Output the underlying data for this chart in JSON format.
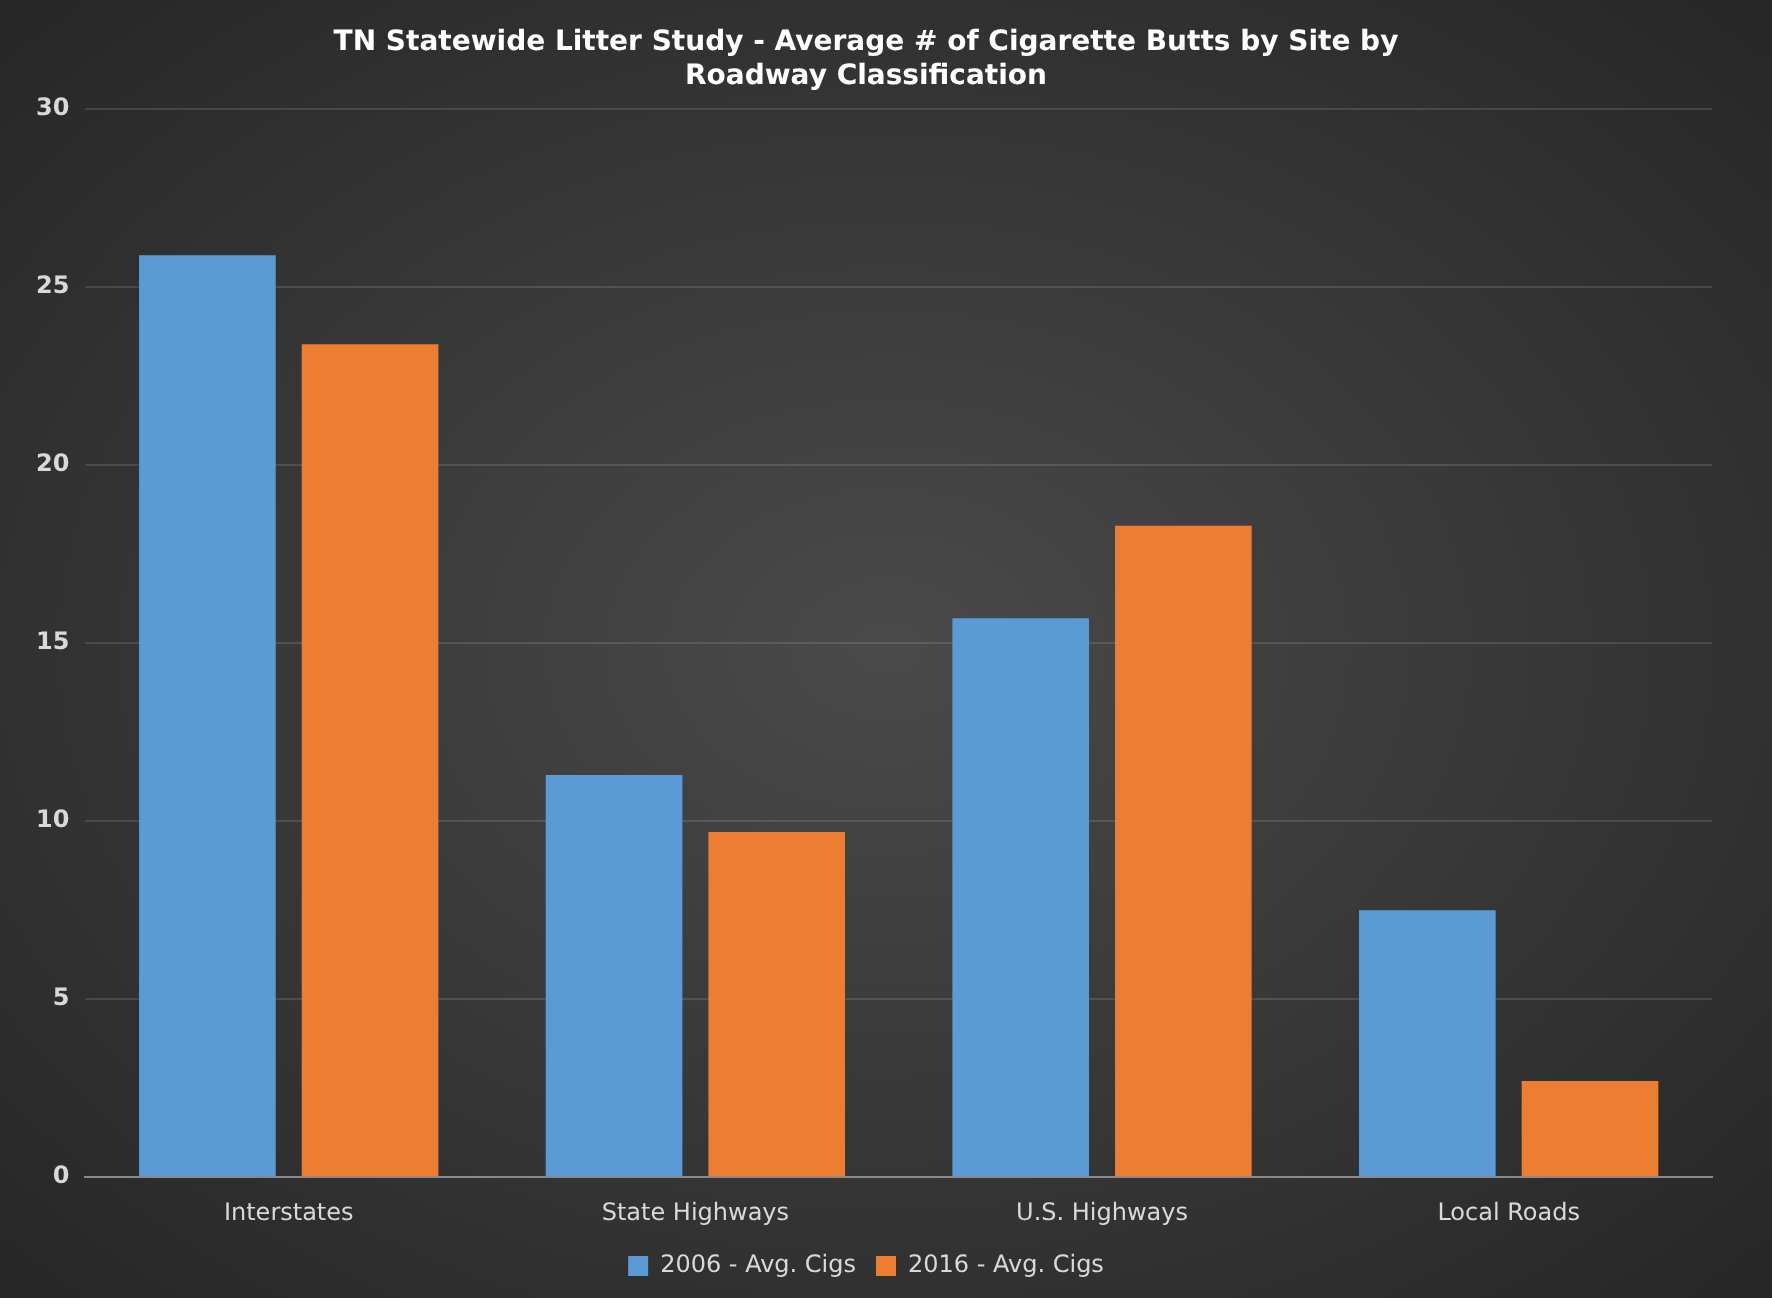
{
  "chart_data": {
    "type": "bar",
    "title": "TN Statewide Litter Study - Average # of Cigarette Butts by Site by Roadway Classification",
    "categories": [
      "Interstates",
      "State Highways",
      "U.S. Highways",
      "Local Roads"
    ],
    "series": [
      {
        "name": "2006 - Avg. Cigs",
        "color": "#5b9bd5",
        "values": [
          25.9,
          11.3,
          15.7,
          7.5
        ]
      },
      {
        "name": "2016 - Avg. Cigs",
        "color": "#ed7d31",
        "values": [
          23.4,
          9.7,
          18.3,
          2.7
        ]
      }
    ],
    "ylim": [
      0,
      30
    ],
    "yticks": [
      0,
      5,
      10,
      15,
      20,
      25,
      30
    ],
    "grid": "y",
    "legend": "bottom"
  }
}
